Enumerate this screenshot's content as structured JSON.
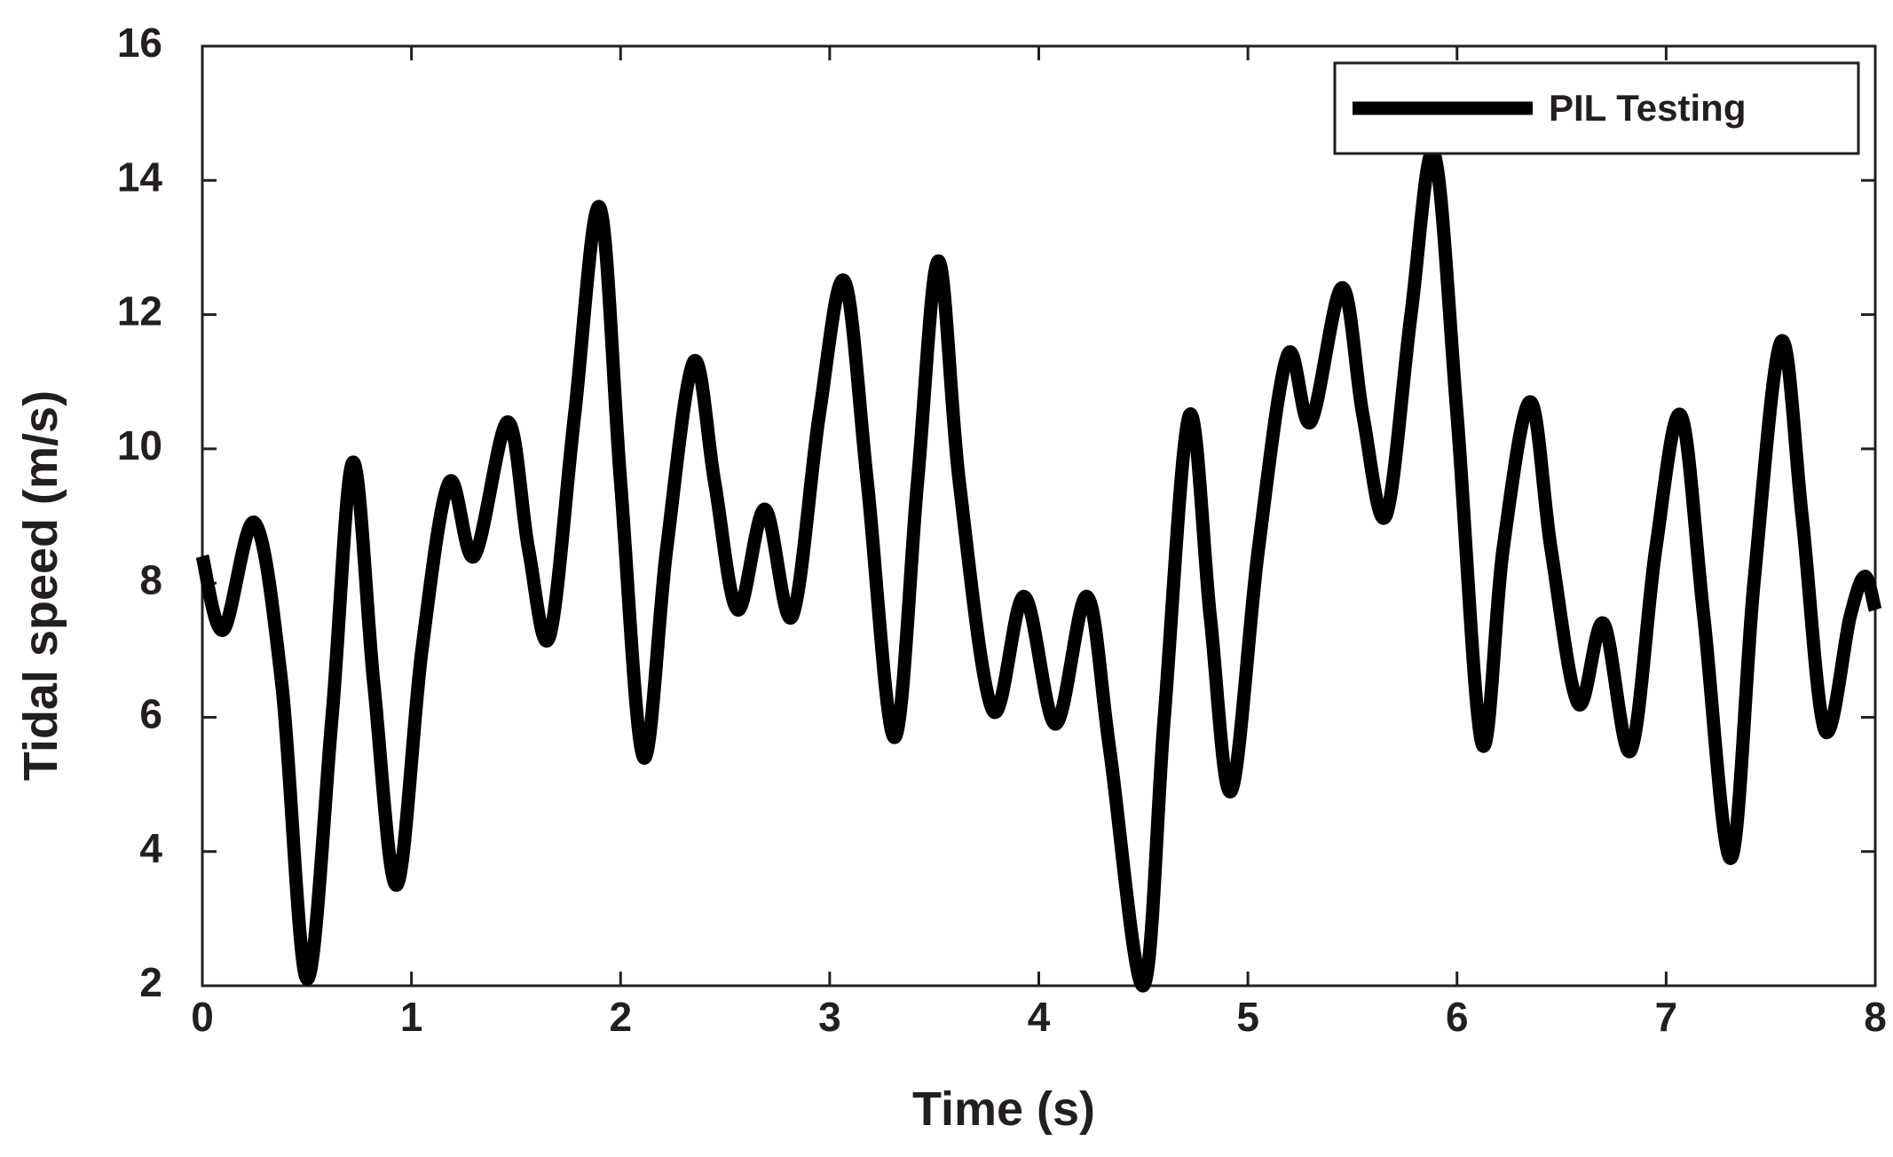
{
  "chart_data": {
    "type": "line",
    "xlabel": "Time (s)",
    "ylabel": "Tidal speed (m/s)",
    "xlim": [
      0,
      8
    ],
    "ylim": [
      2,
      16
    ],
    "xticks": [
      "0",
      "1",
      "2",
      "3",
      "4",
      "5",
      "6",
      "7",
      "8"
    ],
    "yticks": [
      "2",
      "4",
      "6",
      "8",
      "10",
      "12",
      "14",
      "16"
    ],
    "grid": false,
    "legend_position": "top-right",
    "line_color": "#000000",
    "series": [
      {
        "name": "PIL Testing",
        "points": [
          [
            0.0,
            8.4
          ],
          [
            0.1,
            7.3
          ],
          [
            0.25,
            8.9
          ],
          [
            0.38,
            6.5
          ],
          [
            0.5,
            2.1
          ],
          [
            0.62,
            6.0
          ],
          [
            0.72,
            9.8
          ],
          [
            0.82,
            6.5
          ],
          [
            0.93,
            3.5
          ],
          [
            1.05,
            7.0
          ],
          [
            1.18,
            9.5
          ],
          [
            1.3,
            8.4
          ],
          [
            1.46,
            10.4
          ],
          [
            1.56,
            8.5
          ],
          [
            1.66,
            7.2
          ],
          [
            1.78,
            10.5
          ],
          [
            1.9,
            13.6
          ],
          [
            2.0,
            9.5
          ],
          [
            2.11,
            5.4
          ],
          [
            2.22,
            8.5
          ],
          [
            2.35,
            11.3
          ],
          [
            2.45,
            9.5
          ],
          [
            2.56,
            7.6
          ],
          [
            2.69,
            9.1
          ],
          [
            2.82,
            7.5
          ],
          [
            2.95,
            10.5
          ],
          [
            3.07,
            12.5
          ],
          [
            3.18,
            9.5
          ],
          [
            3.31,
            5.7
          ],
          [
            3.42,
            9.5
          ],
          [
            3.52,
            12.8
          ],
          [
            3.62,
            9.5
          ],
          [
            3.78,
            6.1
          ],
          [
            3.93,
            7.8
          ],
          [
            4.08,
            5.9
          ],
          [
            4.23,
            7.8
          ],
          [
            4.34,
            5.5
          ],
          [
            4.5,
            2.0
          ],
          [
            4.6,
            6.0
          ],
          [
            4.72,
            10.5
          ],
          [
            4.82,
            7.5
          ],
          [
            4.92,
            4.9
          ],
          [
            5.05,
            8.5
          ],
          [
            5.19,
            11.4
          ],
          [
            5.3,
            10.4
          ],
          [
            5.45,
            12.4
          ],
          [
            5.55,
            10.5
          ],
          [
            5.66,
            9.0
          ],
          [
            5.78,
            12.0
          ],
          [
            5.89,
            14.4
          ],
          [
            6.0,
            10.5
          ],
          [
            6.12,
            5.6
          ],
          [
            6.22,
            8.5
          ],
          [
            6.35,
            10.7
          ],
          [
            6.45,
            8.5
          ],
          [
            6.58,
            6.2
          ],
          [
            6.7,
            7.4
          ],
          [
            6.83,
            5.5
          ],
          [
            6.95,
            8.5
          ],
          [
            7.07,
            10.5
          ],
          [
            7.18,
            7.5
          ],
          [
            7.31,
            3.9
          ],
          [
            7.42,
            8.0
          ],
          [
            7.55,
            11.6
          ],
          [
            7.65,
            9.0
          ],
          [
            7.76,
            5.8
          ],
          [
            7.88,
            7.5
          ],
          [
            7.95,
            8.1
          ],
          [
            8.0,
            7.6
          ]
        ]
      }
    ]
  }
}
